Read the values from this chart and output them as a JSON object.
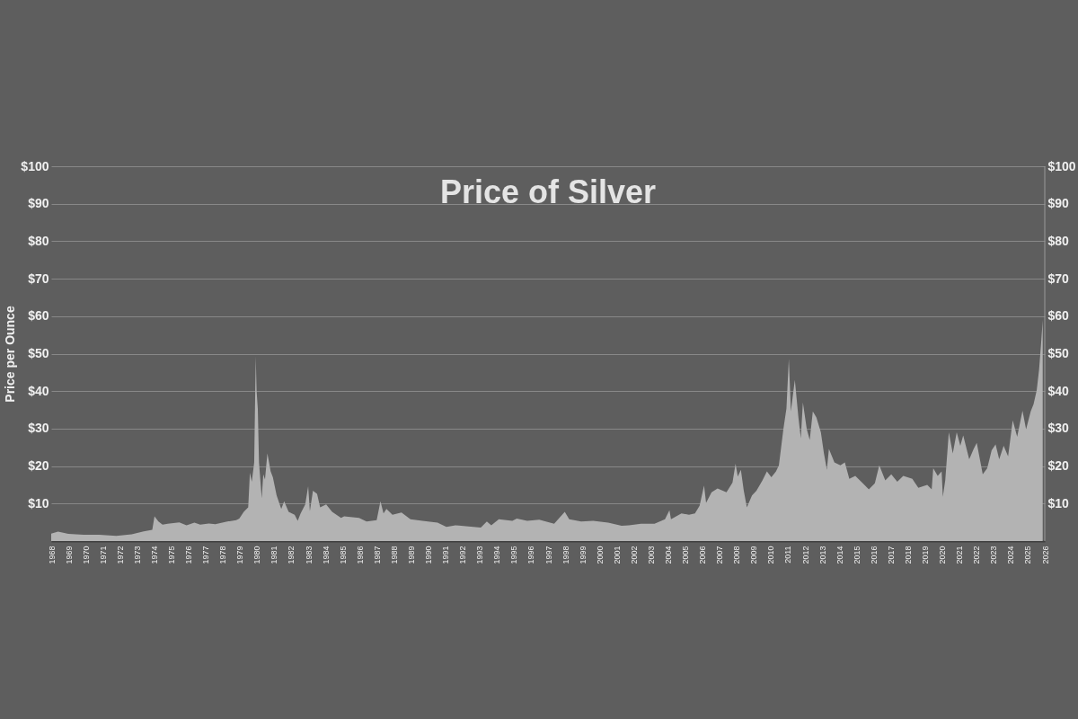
{
  "chart_data": {
    "type": "area",
    "title": "Price of Silver",
    "ylabel": "Price per Ounce",
    "color": "#b3b3b3",
    "x": [
      1968.0,
      1968.4,
      1969.0,
      1969.9,
      1970.8,
      1971.8,
      1972.7,
      1973.4,
      1973.9,
      1974.03,
      1974.26,
      1974.5,
      1974.8,
      1975.48,
      1975.9,
      1976.36,
      1976.7,
      1977.2,
      1977.58,
      1978.28,
      1978.8,
      1978.98,
      1979.24,
      1979.5,
      1979.6,
      1979.71,
      1979.85,
      1979.94,
      1979.99,
      1980.06,
      1980.13,
      1980.29,
      1980.38,
      1980.48,
      1980.62,
      1980.81,
      1980.94,
      1981.16,
      1981.43,
      1981.6,
      1981.86,
      1982.21,
      1982.39,
      1982.56,
      1982.83,
      1983.0,
      1983.1,
      1983.28,
      1983.52,
      1983.7,
      1984.05,
      1984.4,
      1984.92,
      1985.1,
      1985.97,
      1986.41,
      1987.0,
      1987.22,
      1987.4,
      1987.57,
      1987.92,
      1988.45,
      1988.97,
      1989.67,
      1990.55,
      1991.07,
      1991.6,
      1992.64,
      1993.08,
      1993.43,
      1993.69,
      1994.13,
      1994.92,
      1995.18,
      1995.79,
      1996.49,
      1997.36,
      1997.98,
      1998.24,
      1998.94,
      1999.64,
      2000.51,
      2001.3,
      2001.73,
      2002.43,
      2003.22,
      2003.83,
      2004.09,
      2004.18,
      2004.79,
      2005.23,
      2005.58,
      2005.85,
      2006.11,
      2006.23,
      2006.55,
      2006.9,
      2007.42,
      2007.77,
      2007.95,
      2008.08,
      2008.26,
      2008.43,
      2008.61,
      2008.91,
      2009.17,
      2009.52,
      2009.78,
      2010.04,
      2010.31,
      2010.48,
      2010.74,
      2010.92,
      2011.06,
      2011.18,
      2011.41,
      2011.62,
      2011.76,
      2011.88,
      2012.11,
      2012.28,
      2012.46,
      2012.67,
      2012.93,
      2013.11,
      2013.28,
      2013.4,
      2013.72,
      2014.07,
      2014.33,
      2014.59,
      2014.94,
      2015.38,
      2015.73,
      2016.08,
      2016.34,
      2016.69,
      2017.04,
      2017.39,
      2017.74,
      2018.27,
      2018.62,
      2019.14,
      2019.4,
      2019.49,
      2019.75,
      2019.98,
      2020.05,
      2020.19,
      2020.4,
      2020.63,
      2020.86,
      2021.07,
      2021.24,
      2021.59,
      2021.85,
      2022.03,
      2022.38,
      2022.64,
      2022.9,
      2023.13,
      2023.34,
      2023.6,
      2023.86,
      2024.13,
      2024.39,
      2024.7,
      2024.91,
      2025.18,
      2025.35,
      2025.53,
      2025.67,
      2025.79,
      2025.88
    ],
    "values": [
      2.0,
      2.5,
      1.9,
      1.7,
      1.7,
      1.4,
      1.8,
      2.6,
      3.0,
      6.6,
      5.2,
      4.4,
      4.6,
      5.0,
      4.2,
      4.9,
      4.4,
      4.7,
      4.5,
      5.2,
      5.6,
      6.0,
      7.8,
      9.0,
      18.2,
      15.8,
      21.0,
      49.3,
      40.0,
      35.4,
      21.0,
      11.4,
      17.8,
      16.4,
      23.4,
      18.6,
      17.0,
      12.2,
      8.6,
      10.6,
      7.8,
      7.0,
      5.4,
      7.4,
      9.8,
      14.6,
      8.0,
      13.4,
      12.6,
      9.0,
      9.8,
      7.8,
      6.2,
      6.6,
      6.2,
      5.2,
      5.6,
      10.6,
      7.4,
      8.6,
      7.0,
      7.6,
      5.8,
      5.4,
      4.9,
      3.8,
      4.2,
      3.8,
      3.6,
      5.2,
      4.2,
      5.8,
      5.4,
      6.0,
      5.4,
      5.7,
      4.6,
      7.8,
      5.8,
      5.2,
      5.4,
      4.9,
      4.1,
      4.2,
      4.6,
      4.6,
      5.8,
      8.2,
      5.8,
      7.4,
      7.0,
      7.4,
      9.4,
      14.8,
      10.2,
      13.0,
      14.0,
      13.0,
      15.6,
      20.6,
      17.2,
      19.0,
      13.4,
      9.0,
      12.2,
      13.4,
      16.2,
      18.6,
      17.0,
      18.6,
      20.2,
      29.8,
      35.4,
      48.6,
      34.6,
      43.0,
      33.0,
      27.4,
      37.0,
      29.8,
      27.0,
      34.6,
      33.0,
      29.0,
      23.4,
      19.0,
      24.6,
      21.0,
      20.2,
      21.0,
      16.6,
      17.4,
      15.4,
      13.8,
      15.4,
      20.2,
      16.2,
      17.8,
      15.8,
      17.4,
      16.6,
      14.2,
      15.0,
      13.8,
      19.4,
      17.4,
      18.6,
      11.8,
      16.2,
      29.0,
      23.4,
      29.0,
      25.4,
      28.2,
      21.8,
      24.6,
      26.2,
      17.8,
      19.4,
      24.2,
      25.8,
      21.8,
      25.4,
      22.6,
      32.2,
      27.8,
      34.8,
      29.8,
      34.6,
      36.6,
      40.2,
      45.8,
      53.0,
      59.0
    ],
    "xlim": [
      1968,
      2026
    ],
    "xticks": [
      1968,
      1969,
      1970,
      1971,
      1972,
      1973,
      1974,
      1975,
      1976,
      1977,
      1978,
      1979,
      1980,
      1981,
      1982,
      1983,
      1984,
      1985,
      1986,
      1987,
      1988,
      1989,
      1990,
      1991,
      1992,
      1993,
      1994,
      1995,
      1996,
      1997,
      1998,
      1999,
      2000,
      2001,
      2002,
      2003,
      2004,
      2005,
      2006,
      2007,
      2008,
      2009,
      2010,
      2011,
      2012,
      2013,
      2014,
      2015,
      2016,
      2017,
      2018,
      2019,
      2020,
      2021,
      2022,
      2023,
      2024,
      2025,
      2026
    ],
    "ylim": [
      0,
      100
    ],
    "yticks": [
      {
        "value": 10,
        "label": "$10"
      },
      {
        "value": 20,
        "label": "$20"
      },
      {
        "value": 30,
        "label": "$30"
      },
      {
        "value": 40,
        "label": "$40"
      },
      {
        "value": 50,
        "label": "$50"
      },
      {
        "value": 60,
        "label": "$60"
      },
      {
        "value": 70,
        "label": "$70"
      },
      {
        "value": 80,
        "label": "$80"
      },
      {
        "value": 90,
        "label": "$90"
      },
      {
        "value": 100,
        "label": "$100"
      }
    ],
    "y2lim": [
      0,
      100
    ],
    "y2ticks": [
      {
        "value": 10,
        "label": "$10"
      },
      {
        "value": 20,
        "label": "$20"
      },
      {
        "value": 30,
        "label": "$30"
      },
      {
        "value": 40,
        "label": "$40"
      },
      {
        "value": 50,
        "label": "$50"
      },
      {
        "value": 60,
        "label": "$60"
      },
      {
        "value": 70,
        "label": "$70"
      },
      {
        "value": 80,
        "label": "$80"
      },
      {
        "value": 90,
        "label": "$90"
      },
      {
        "value": 100,
        "label": "$100"
      }
    ],
    "grid": "y"
  }
}
